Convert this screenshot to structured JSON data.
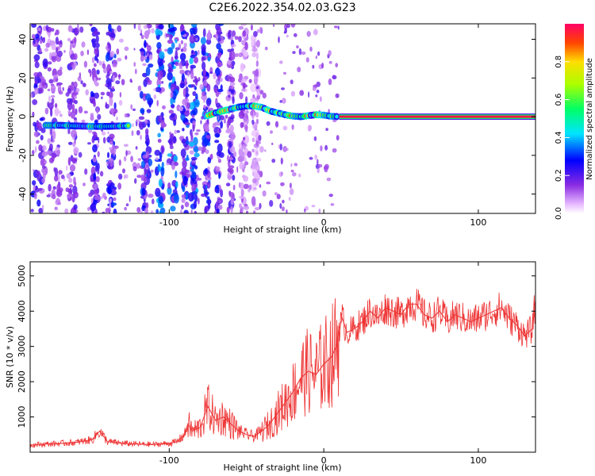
{
  "figure_title": "C2E6.2022.354.02.03.G23",
  "chart_data": [
    {
      "type": "heatmap",
      "xlabel": "Height of straight line (km)",
      "ylabel": "Frequency (Hz)",
      "xlim": [
        -190,
        137
      ],
      "ylim": [
        -50,
        48
      ],
      "x_ticks": [
        -100,
        0,
        100
      ],
      "x_tick_labels": [
        "-100",
        "0",
        "100"
      ],
      "y_ticks": [
        -40,
        -20,
        0,
        20,
        40
      ],
      "y_tick_labels": [
        "-40",
        "-20",
        "0",
        "20",
        "40"
      ],
      "grid": false,
      "colorbar": {
        "label": "Normalized spectral amplitude",
        "range": [
          0,
          1
        ],
        "ticks": [
          0.0,
          0.2,
          0.4,
          0.6,
          0.8
        ],
        "tick_labels": [
          "0.0",
          "0.2",
          "0.4",
          "0.6",
          "0.8"
        ]
      },
      "ridge": [
        {
          "x": -180,
          "y": -4.5
        },
        {
          "x": -170,
          "y": -4.5
        },
        {
          "x": -160,
          "y": -4.8
        },
        {
          "x": -150,
          "y": -5.0
        },
        {
          "x": -140,
          "y": -5.0
        },
        {
          "x": -125,
          "y": -4.6
        },
        {
          "x": -75,
          "y": 0.5
        },
        {
          "x": -70,
          "y": 2.0
        },
        {
          "x": -65,
          "y": 3.0
        },
        {
          "x": -60,
          "y": 4.0
        },
        {
          "x": -55,
          "y": 5.0
        },
        {
          "x": -50,
          "y": 5.5
        },
        {
          "x": -45,
          "y": 5.5
        },
        {
          "x": -40,
          "y": 4.8
        },
        {
          "x": -35,
          "y": 3.0
        },
        {
          "x": -30,
          "y": 2.0
        },
        {
          "x": -25,
          "y": 1.0
        },
        {
          "x": -20,
          "y": 0.3
        },
        {
          "x": -15,
          "y": 0.0
        },
        {
          "x": -10,
          "y": 0.5
        },
        {
          "x": -5,
          "y": 1.0
        },
        {
          "x": 0,
          "y": 0.8
        },
        {
          "x": 5,
          "y": 0.2
        },
        {
          "x": 10,
          "y": 0.0
        },
        {
          "x": 137,
          "y": 0.0
        }
      ]
    },
    {
      "type": "line",
      "xlabel": "Height of straight line (km)",
      "ylabel": "SNR (10 * v/v)",
      "xlim": [
        -190,
        137
      ],
      "ylim": [
        0,
        5400
      ],
      "x_ticks": [
        -100,
        0,
        100
      ],
      "x_tick_labels": [
        "-100",
        "0",
        "100"
      ],
      "y_ticks": [
        1000,
        2000,
        3000,
        4000,
        5000
      ],
      "y_tick_labels": [
        "1000",
        "2000",
        "3000",
        "4000",
        "5000"
      ],
      "grid": false,
      "color": "#ee3333",
      "series": [
        {
          "x": [
            -190,
            -180,
            -170,
            -160,
            -150,
            -145,
            -140,
            -130,
            -120,
            -110,
            -100,
            -95,
            -90,
            -88,
            -85,
            -80,
            -75,
            -70,
            -65,
            -60,
            -55,
            -50,
            -45,
            -40,
            -35,
            -30,
            -25,
            -20,
            -15,
            -10,
            -5,
            0,
            5,
            8,
            10,
            12,
            15,
            20,
            25,
            30,
            35,
            40,
            45,
            50,
            55,
            60,
            65,
            70,
            75,
            80,
            85,
            90,
            95,
            100,
            105,
            110,
            115,
            120,
            125,
            130,
            135,
            137
          ],
          "y": [
            200,
            230,
            250,
            280,
            350,
            600,
            300,
            250,
            230,
            220,
            250,
            300,
            500,
            800,
            600,
            700,
            1300,
            900,
            1000,
            800,
            600,
            500,
            450,
            600,
            800,
            1100,
            1400,
            1700,
            2100,
            2300,
            2200,
            2500,
            2700,
            3000,
            3500,
            3800,
            3400,
            3500,
            3700,
            4000,
            3800,
            4100,
            4000,
            3900,
            4200,
            4200,
            3900,
            3800,
            4000,
            3700,
            3900,
            3800,
            3700,
            3800,
            3900,
            4000,
            4100,
            3800,
            3600,
            3300,
            3500,
            4300
          ]
        }
      ]
    }
  ]
}
